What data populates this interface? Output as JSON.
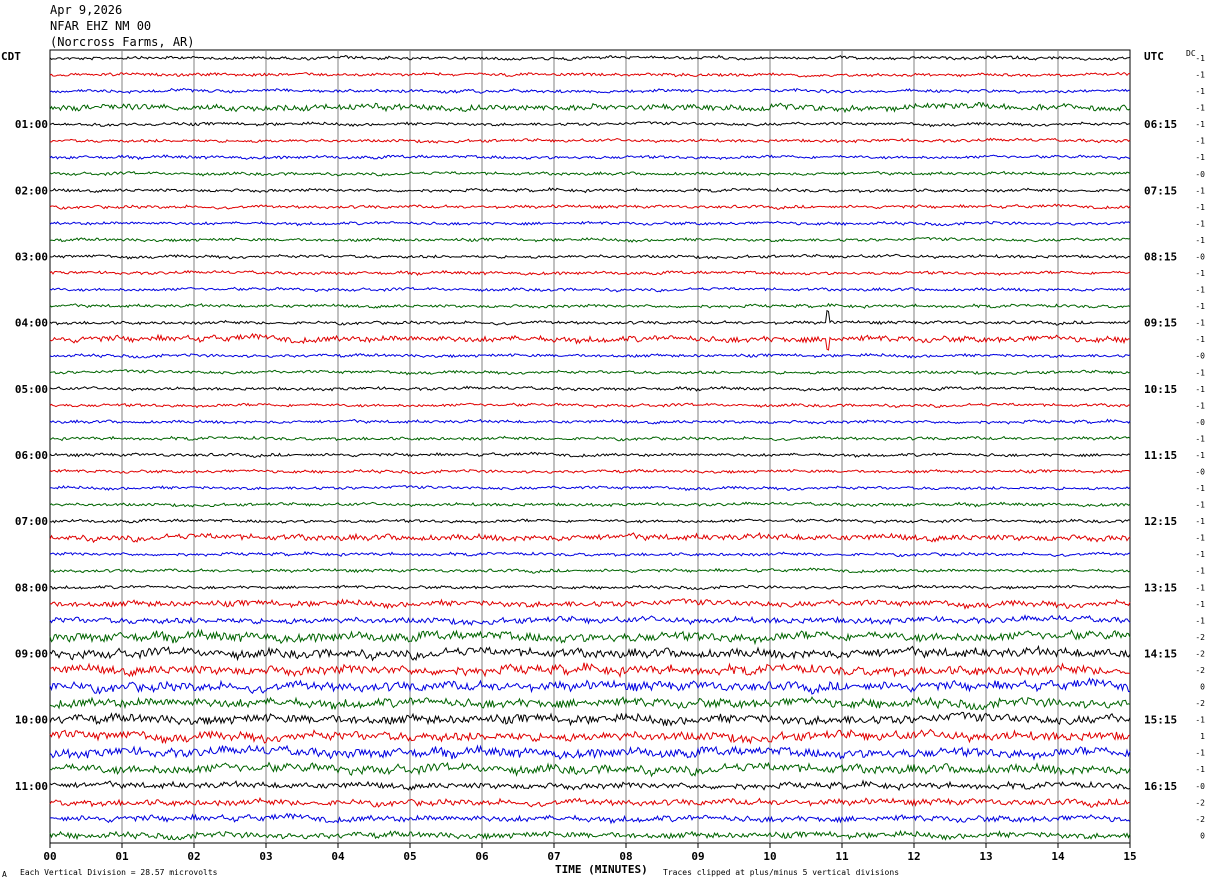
{
  "header": {
    "date": "Apr 9,2026",
    "station": "NFAR EHZ NM 00",
    "location": "(Norcross Farms, AR)"
  },
  "footer": {
    "corner_mark": "A",
    "vertical_division": "Each Vertical Division =   28.57 microvolts",
    "clip_note": "Traces clipped at plus/minus 5 vertical divisions"
  },
  "chart_data": {
    "type": "line",
    "subtype": "helicorder",
    "xlabel": "TIME (MINUTES)",
    "xlim": [
      0,
      15
    ],
    "x_ticks": [
      "00",
      "01",
      "02",
      "03",
      "04",
      "05",
      "06",
      "07",
      "08",
      "09",
      "10",
      "11",
      "12",
      "13",
      "14",
      "15"
    ],
    "grid": "vertical lines every minute",
    "left_axis_title": "CDT",
    "right_axis_title": "UTC",
    "dc_header": "DC",
    "trace_colors": [
      "#000000",
      "#e00000",
      "#0000e0",
      "#006400"
    ],
    "num_traces": 48,
    "minutes_per_trace": 15,
    "left_hour_labels": [
      "01:00",
      "02:00",
      "03:00",
      "04:00",
      "05:00",
      "06:00",
      "07:00",
      "08:00",
      "09:00",
      "10:00",
      "11:00"
    ],
    "right_hour_labels": [
      "06:15",
      "07:15",
      "08:15",
      "09:15",
      "10:15",
      "11:15",
      "12:15",
      "13:15",
      "14:15",
      "15:15",
      "16:15"
    ],
    "dc_offsets": [
      "-1",
      "-1",
      "-1",
      "-1",
      "-1",
      "-1",
      "-1",
      "-0",
      "-1",
      "-1",
      "-1",
      "-1",
      "-0",
      "-1",
      "-1",
      "-1",
      "-1",
      "-1",
      "-0",
      "-1",
      "-1",
      "-1",
      "-0",
      "-1",
      "-1",
      "-0",
      "-1",
      "-1",
      "-1",
      "-1",
      "-1",
      "-1",
      "-1",
      "-1",
      "-1",
      "-2",
      "-2",
      "-2",
      "0",
      "-2",
      "-1",
      "1",
      "-1",
      "-1",
      "-0",
      "-2",
      "-2",
      "0"
    ],
    "trace_amplitude": [
      1,
      1,
      1,
      2,
      1,
      1,
      1,
      1,
      1,
      1,
      1,
      1,
      1,
      1,
      1,
      1,
      1,
      2,
      1,
      1,
      1,
      1,
      1,
      1,
      1,
      1,
      1,
      1,
      1,
      2,
      1,
      1,
      1,
      2,
      2,
      3,
      3,
      3,
      3,
      3,
      3,
      3,
      3,
      3,
      2,
      2,
      2,
      2
    ],
    "events": [
      {
        "trace": 16,
        "minute": 10.8,
        "note": "spike"
      },
      {
        "trace": 17,
        "minute": 10.8,
        "note": "spike"
      }
    ]
  }
}
